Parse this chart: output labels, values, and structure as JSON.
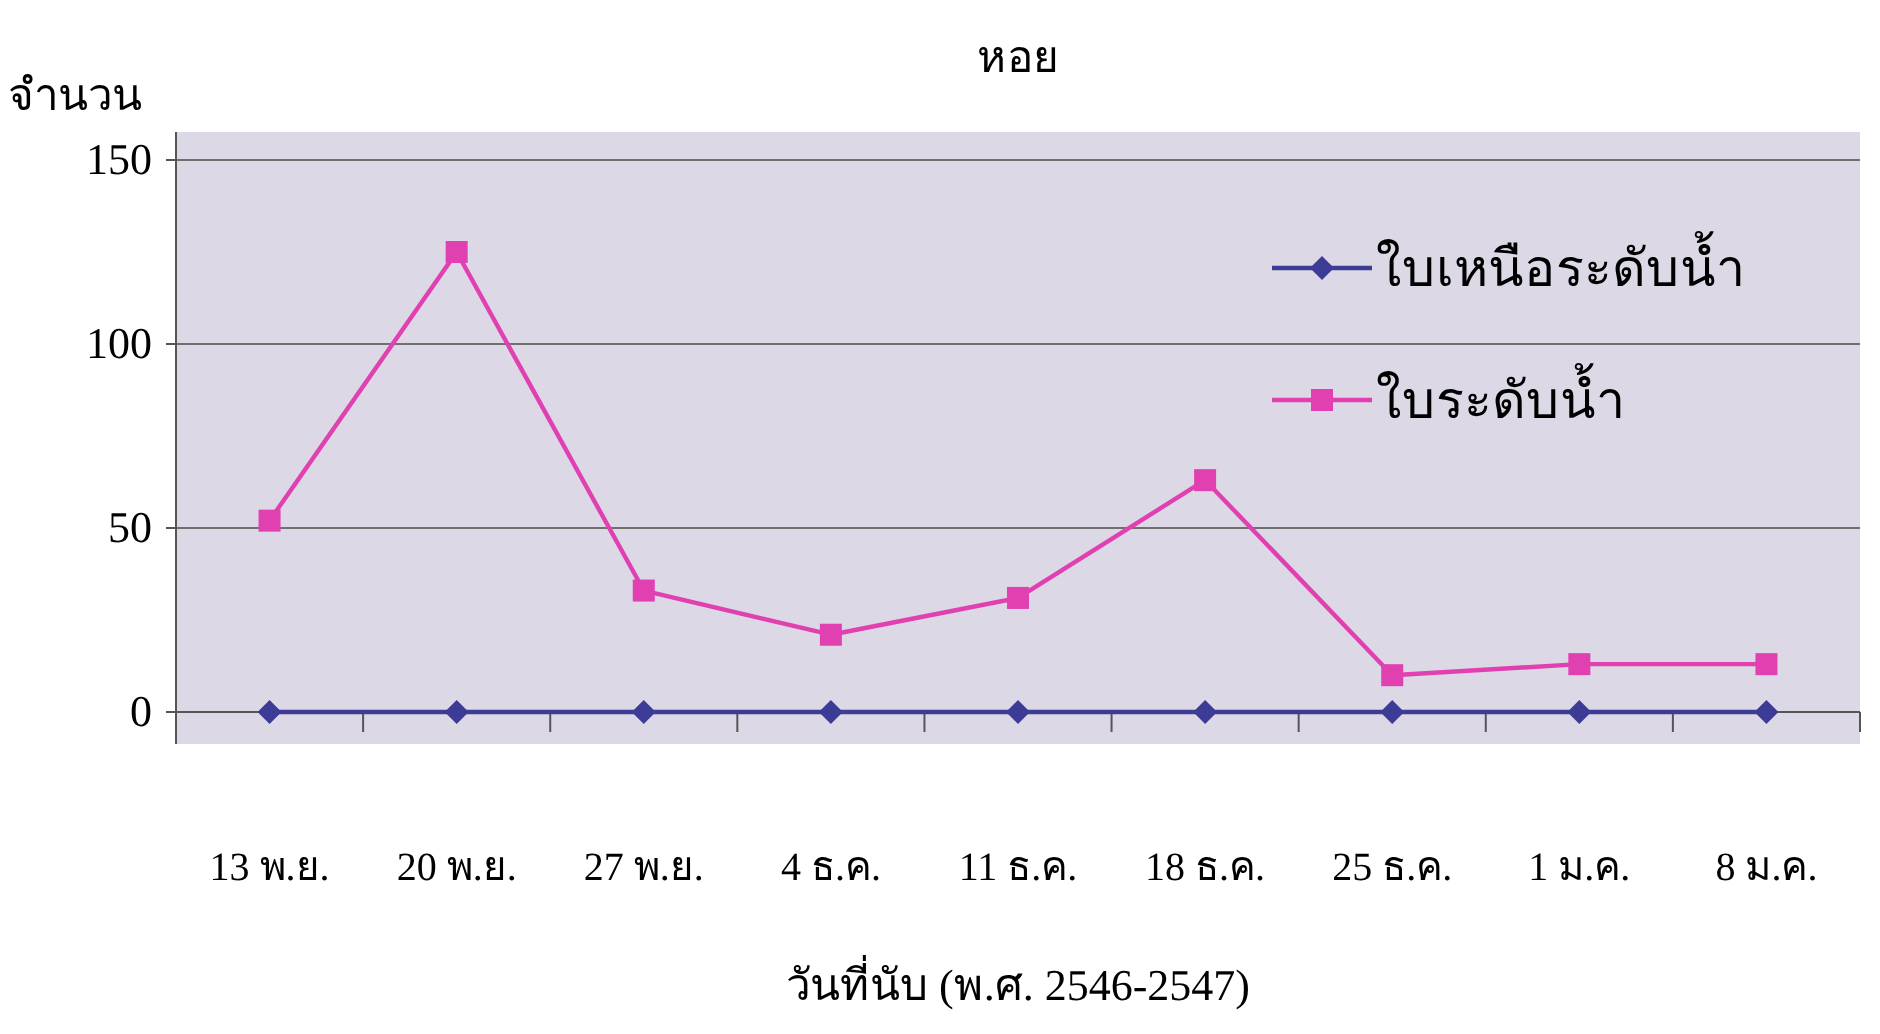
{
  "chart_data": {
    "type": "line",
    "title": "หอย",
    "ylabel": "จำนวน",
    "xlabel": "วันที่นับ (พ.ศ. 2546-2547)",
    "categories": [
      "13 พ.ย.",
      "20 พ.ย.",
      "27 พ.ย.",
      "4 ธ.ค.",
      "11 ธ.ค.",
      "18 ธ.ค.",
      "25 ธ.ค.",
      "1 ม.ค.",
      "8 ม.ค."
    ],
    "series": [
      {
        "name": "ใบเหนือระดับน้ำ",
        "color": "#3c3c96",
        "marker": "diamond",
        "values": [
          0,
          0,
          0,
          0,
          0,
          0,
          0,
          0,
          0
        ]
      },
      {
        "name": "ใบระดับน้ำ",
        "color": "#e040b0",
        "marker": "square",
        "values": [
          52,
          125,
          33,
          21,
          31,
          63,
          10,
          13,
          13
        ]
      }
    ],
    "ylim": [
      0,
      150
    ],
    "yticks": [
      0,
      50,
      100,
      150
    ],
    "grid": "y",
    "legend": "top right"
  }
}
